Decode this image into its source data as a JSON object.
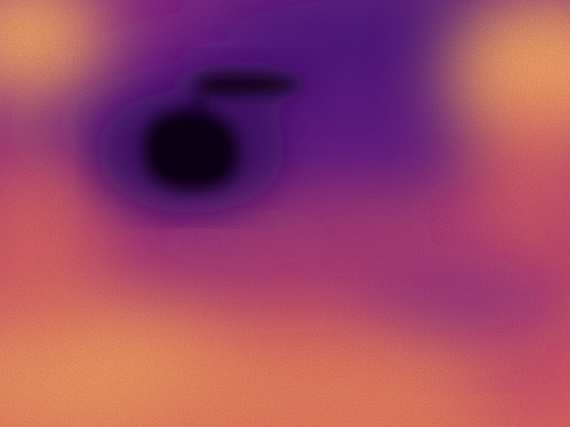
{
  "image": {
    "kind": "thermal-camera-frame",
    "palette": "magma",
    "palette_colors": {
      "coldest": "#0d0419",
      "cold": "#3a0f63",
      "cool": "#6a1f8a",
      "mid": "#a9337f",
      "warm": "#d9576a",
      "hot": "#f4895e",
      "hottest": "#fcd3a0"
    },
    "scene_elements": [
      {
        "name": "handheld-object-cold-silhouette",
        "description_level": "coldest"
      },
      {
        "name": "cold-bar-above-object",
        "description_level": "coldest"
      },
      {
        "name": "warm-background-floor",
        "description_level": "warm"
      },
      {
        "name": "hot-corner-top-left",
        "description_level": "hottest"
      },
      {
        "name": "hot-region-top-right",
        "description_level": "hottest"
      },
      {
        "name": "hot-region-bottom-left",
        "description_level": "hot"
      }
    ]
  }
}
